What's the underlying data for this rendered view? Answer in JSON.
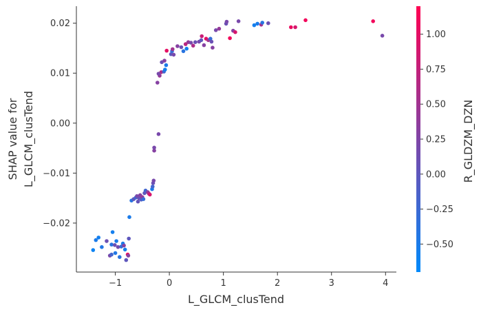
{
  "chart_data": {
    "type": "scatter",
    "xlabel": "L_GLCM_clusTend",
    "ylabel_lines": [
      "SHAP value for",
      "L_GLCM_clusTend"
    ],
    "xlim": [
      -1.72,
      4.2
    ],
    "ylim": [
      -0.0298,
      0.0234
    ],
    "xticks": [
      -1,
      0,
      1,
      2,
      3,
      4
    ],
    "xtick_labels": [
      "−1",
      "0",
      "1",
      "2",
      "3",
      "4"
    ],
    "yticks": [
      -0.02,
      -0.01,
      0.0,
      0.01,
      0.02
    ],
    "ytick_labels": [
      "−0.02",
      "−0.01",
      "0.00",
      "0.01",
      "0.02"
    ],
    "colorbar": {
      "label": "R_GLDZM_DZN",
      "range": [
        -0.7,
        1.2
      ],
      "ticks": [
        -0.5,
        -0.25,
        0.0,
        0.25,
        0.5,
        0.75,
        1.0
      ],
      "tick_labels": [
        "−0.50",
        "−0.25",
        "0.00",
        "0.25",
        "0.50",
        "0.75",
        "1.00"
      ],
      "color_low": "#008afb",
      "color_high": "#ff0052"
    },
    "points": [
      {
        "x": -1.41,
        "y": -0.0254,
        "c": -0.6
      },
      {
        "x": -1.36,
        "y": -0.0234,
        "c": -0.5
      },
      {
        "x": -1.31,
        "y": -0.0229,
        "c": -0.55
      },
      {
        "x": -1.25,
        "y": -0.0248,
        "c": -0.45
      },
      {
        "x": -1.16,
        "y": -0.0236,
        "c": 0.1
      },
      {
        "x": -1.1,
        "y": -0.0265,
        "c": 0.2
      },
      {
        "x": -1.07,
        "y": -0.0263,
        "c": -0.2
      },
      {
        "x": -1.07,
        "y": -0.0243,
        "c": -0.4
      },
      {
        "x": -1.05,
        "y": -0.0218,
        "c": -0.55
      },
      {
        "x": -1.01,
        "y": -0.0244,
        "c": 0.1
      },
      {
        "x": -1.0,
        "y": -0.026,
        "c": -0.45
      },
      {
        "x": -0.98,
        "y": -0.0236,
        "c": -0.5
      },
      {
        "x": -0.95,
        "y": -0.0248,
        "c": 0.15
      },
      {
        "x": -0.92,
        "y": -0.0268,
        "c": -0.4
      },
      {
        "x": -0.89,
        "y": -0.0247,
        "c": -0.3
      },
      {
        "x": -0.86,
        "y": -0.0241,
        "c": -0.5
      },
      {
        "x": -0.84,
        "y": -0.0245,
        "c": 0.3
      },
      {
        "x": -0.82,
        "y": -0.0253,
        "c": -0.55
      },
      {
        "x": -0.8,
        "y": -0.0274,
        "c": 0.0
      },
      {
        "x": -0.77,
        "y": -0.0263,
        "c": 1.1
      },
      {
        "x": -0.76,
        "y": -0.0265,
        "c": 0.3
      },
      {
        "x": -0.75,
        "y": -0.0231,
        "c": 0.0
      },
      {
        "x": -0.74,
        "y": -0.0188,
        "c": -0.5
      },
      {
        "x": -0.7,
        "y": -0.0155,
        "c": -0.4
      },
      {
        "x": -0.66,
        "y": -0.0152,
        "c": 0.0
      },
      {
        "x": -0.62,
        "y": -0.0149,
        "c": -0.2
      },
      {
        "x": -0.6,
        "y": -0.0146,
        "c": 0.2
      },
      {
        "x": -0.58,
        "y": -0.0157,
        "c": 0.05
      },
      {
        "x": -0.56,
        "y": -0.015,
        "c": 0.1
      },
      {
        "x": -0.54,
        "y": -0.0144,
        "c": 0.3
      },
      {
        "x": -0.52,
        "y": -0.0153,
        "c": -0.1
      },
      {
        "x": -0.5,
        "y": -0.0148,
        "c": 0.4
      },
      {
        "x": -0.48,
        "y": -0.0152,
        "c": -0.3
      },
      {
        "x": -0.46,
        "y": -0.014,
        "c": 0.0
      },
      {
        "x": -0.44,
        "y": -0.0135,
        "c": -0.2
      },
      {
        "x": -0.4,
        "y": -0.0138,
        "c": 0.3
      },
      {
        "x": -0.38,
        "y": -0.0141,
        "c": 0.6
      },
      {
        "x": -0.36,
        "y": -0.0143,
        "c": 0.9
      },
      {
        "x": -0.32,
        "y": -0.0132,
        "c": -0.5
      },
      {
        "x": -0.31,
        "y": -0.0127,
        "c": -0.2
      },
      {
        "x": -0.3,
        "y": -0.012,
        "c": 0.1
      },
      {
        "x": -0.29,
        "y": -0.0115,
        "c": 0.2
      },
      {
        "x": -0.28,
        "y": -0.0055,
        "c": 0.3
      },
      {
        "x": -0.28,
        "y": -0.0049,
        "c": 0.2
      },
      {
        "x": -0.22,
        "y": 0.0081,
        "c": 0.3
      },
      {
        "x": -0.18,
        "y": 0.0095,
        "c": 0.4
      },
      {
        "x": -0.15,
        "y": 0.0102,
        "c": 0.6
      },
      {
        "x": -0.2,
        "y": 0.0099,
        "c": 0.2
      },
      {
        "x": -0.2,
        "y": -0.0022,
        "c": 0.2
      },
      {
        "x": -0.14,
        "y": 0.0122,
        "c": 0.1
      },
      {
        "x": -0.1,
        "y": 0.0103,
        "c": -0.2
      },
      {
        "x": -0.08,
        "y": 0.0107,
        "c": -0.55
      },
      {
        "x": -0.06,
        "y": 0.0116,
        "c": -0.5
      },
      {
        "x": -0.09,
        "y": 0.0125,
        "c": 0.3
      },
      {
        "x": -0.05,
        "y": 0.0145,
        "c": 1.0
      },
      {
        "x": 0.03,
        "y": 0.0138,
        "c": 0.0
      },
      {
        "x": 0.05,
        "y": 0.0144,
        "c": -0.3
      },
      {
        "x": 0.08,
        "y": 0.0137,
        "c": 0.2
      },
      {
        "x": 0.06,
        "y": 0.0148,
        "c": 0.5
      },
      {
        "x": 0.15,
        "y": 0.0154,
        "c": 0.3
      },
      {
        "x": 0.22,
        "y": 0.0152,
        "c": 0.1
      },
      {
        "x": 0.26,
        "y": 0.0144,
        "c": -0.4
      },
      {
        "x": 0.3,
        "y": 0.0158,
        "c": 0.7
      },
      {
        "x": 0.32,
        "y": 0.0149,
        "c": -0.55
      },
      {
        "x": 0.35,
        "y": 0.0162,
        "c": 0.4
      },
      {
        "x": 0.4,
        "y": 0.0161,
        "c": 0.2
      },
      {
        "x": 0.44,
        "y": 0.0155,
        "c": 0.6
      },
      {
        "x": 0.48,
        "y": 0.0162,
        "c": 0.1
      },
      {
        "x": 0.55,
        "y": 0.0163,
        "c": 0.2
      },
      {
        "x": 0.59,
        "y": 0.0166,
        "c": 0.0
      },
      {
        "x": 0.6,
        "y": 0.0174,
        "c": 0.8
      },
      {
        "x": 0.64,
        "y": 0.0156,
        "c": 0.3
      },
      {
        "x": 0.68,
        "y": 0.0169,
        "c": 1.0
      },
      {
        "x": 0.72,
        "y": 0.0166,
        "c": 0.5
      },
      {
        "x": 0.76,
        "y": 0.0169,
        "c": -0.3
      },
      {
        "x": 0.78,
        "y": 0.0163,
        "c": 0.1
      },
      {
        "x": 0.8,
        "y": 0.0151,
        "c": 0.3
      },
      {
        "x": 0.86,
        "y": 0.0186,
        "c": 0.2
      },
      {
        "x": 0.92,
        "y": 0.0189,
        "c": 0.4
      },
      {
        "x": 1.05,
        "y": 0.0199,
        "c": 0.1
      },
      {
        "x": 1.06,
        "y": 0.0203,
        "c": 0.2
      },
      {
        "x": 1.12,
        "y": 0.017,
        "c": 1.1
      },
      {
        "x": 1.18,
        "y": 0.0185,
        "c": 0.3
      },
      {
        "x": 1.22,
        "y": 0.0182,
        "c": 0.9
      },
      {
        "x": 1.28,
        "y": 0.0204,
        "c": 0.2
      },
      {
        "x": 1.57,
        "y": 0.0196,
        "c": -0.55
      },
      {
        "x": 1.63,
        "y": 0.0199,
        "c": -0.5
      },
      {
        "x": 1.7,
        "y": 0.0197,
        "c": 0.5
      },
      {
        "x": 1.72,
        "y": 0.0201,
        "c": -0.4
      },
      {
        "x": 1.83,
        "y": 0.02,
        "c": 0.1
      },
      {
        "x": 2.25,
        "y": 0.0192,
        "c": 1.05
      },
      {
        "x": 2.33,
        "y": 0.0192,
        "c": 0.9
      },
      {
        "x": 2.52,
        "y": 0.0206,
        "c": 1.1
      },
      {
        "x": 3.77,
        "y": 0.0204,
        "c": 1.1
      },
      {
        "x": 3.94,
        "y": 0.0175,
        "c": 0.2
      }
    ]
  }
}
